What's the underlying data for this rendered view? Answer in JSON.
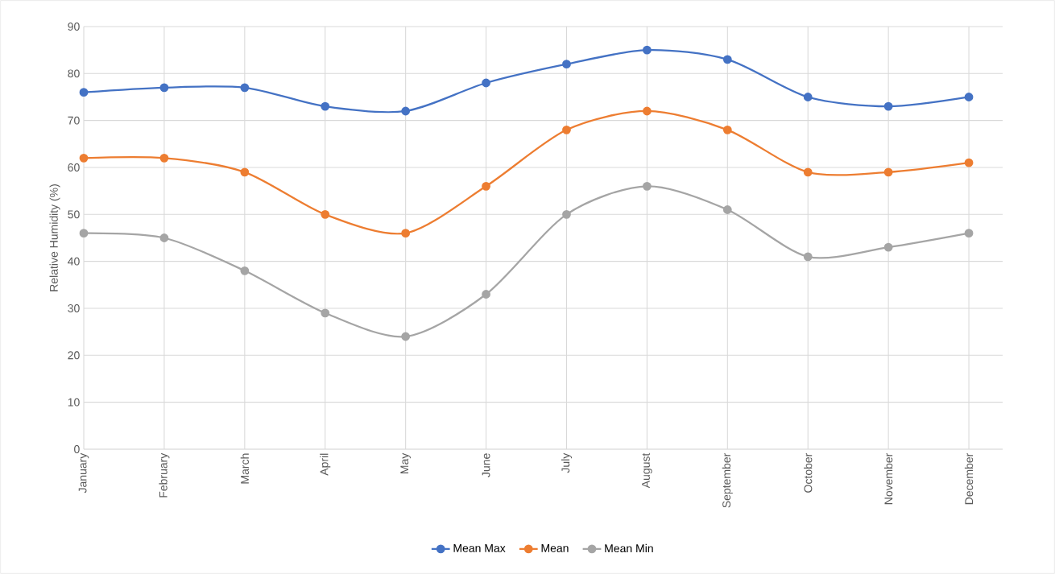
{
  "chart_data": {
    "type": "line",
    "ylabel": "Relative Humidity (%)",
    "categories": [
      "January",
      "February",
      "March",
      "April",
      "May",
      "June",
      "July",
      "August",
      "September",
      "October",
      "November",
      "December"
    ],
    "ylim": [
      0,
      90
    ],
    "yticks": [
      0,
      10,
      20,
      30,
      40,
      50,
      60,
      70,
      80,
      90
    ],
    "series": [
      {
        "name": "Mean Max",
        "color": "#4472c4",
        "values": [
          76,
          77,
          77,
          73,
          72,
          78,
          82,
          85,
          83,
          75,
          73,
          75
        ]
      },
      {
        "name": "Mean",
        "color": "#ed7d31",
        "values": [
          62,
          62,
          59,
          50,
          46,
          56,
          68,
          72,
          68,
          59,
          59,
          61
        ]
      },
      {
        "name": "Mean Min",
        "color": "#a5a5a5",
        "values": [
          46,
          45,
          38,
          29,
          24,
          33,
          50,
          56,
          51,
          41,
          43,
          46
        ]
      }
    ],
    "grid": true,
    "legend": "bottom",
    "marker": "circle",
    "line_style": "solid"
  }
}
